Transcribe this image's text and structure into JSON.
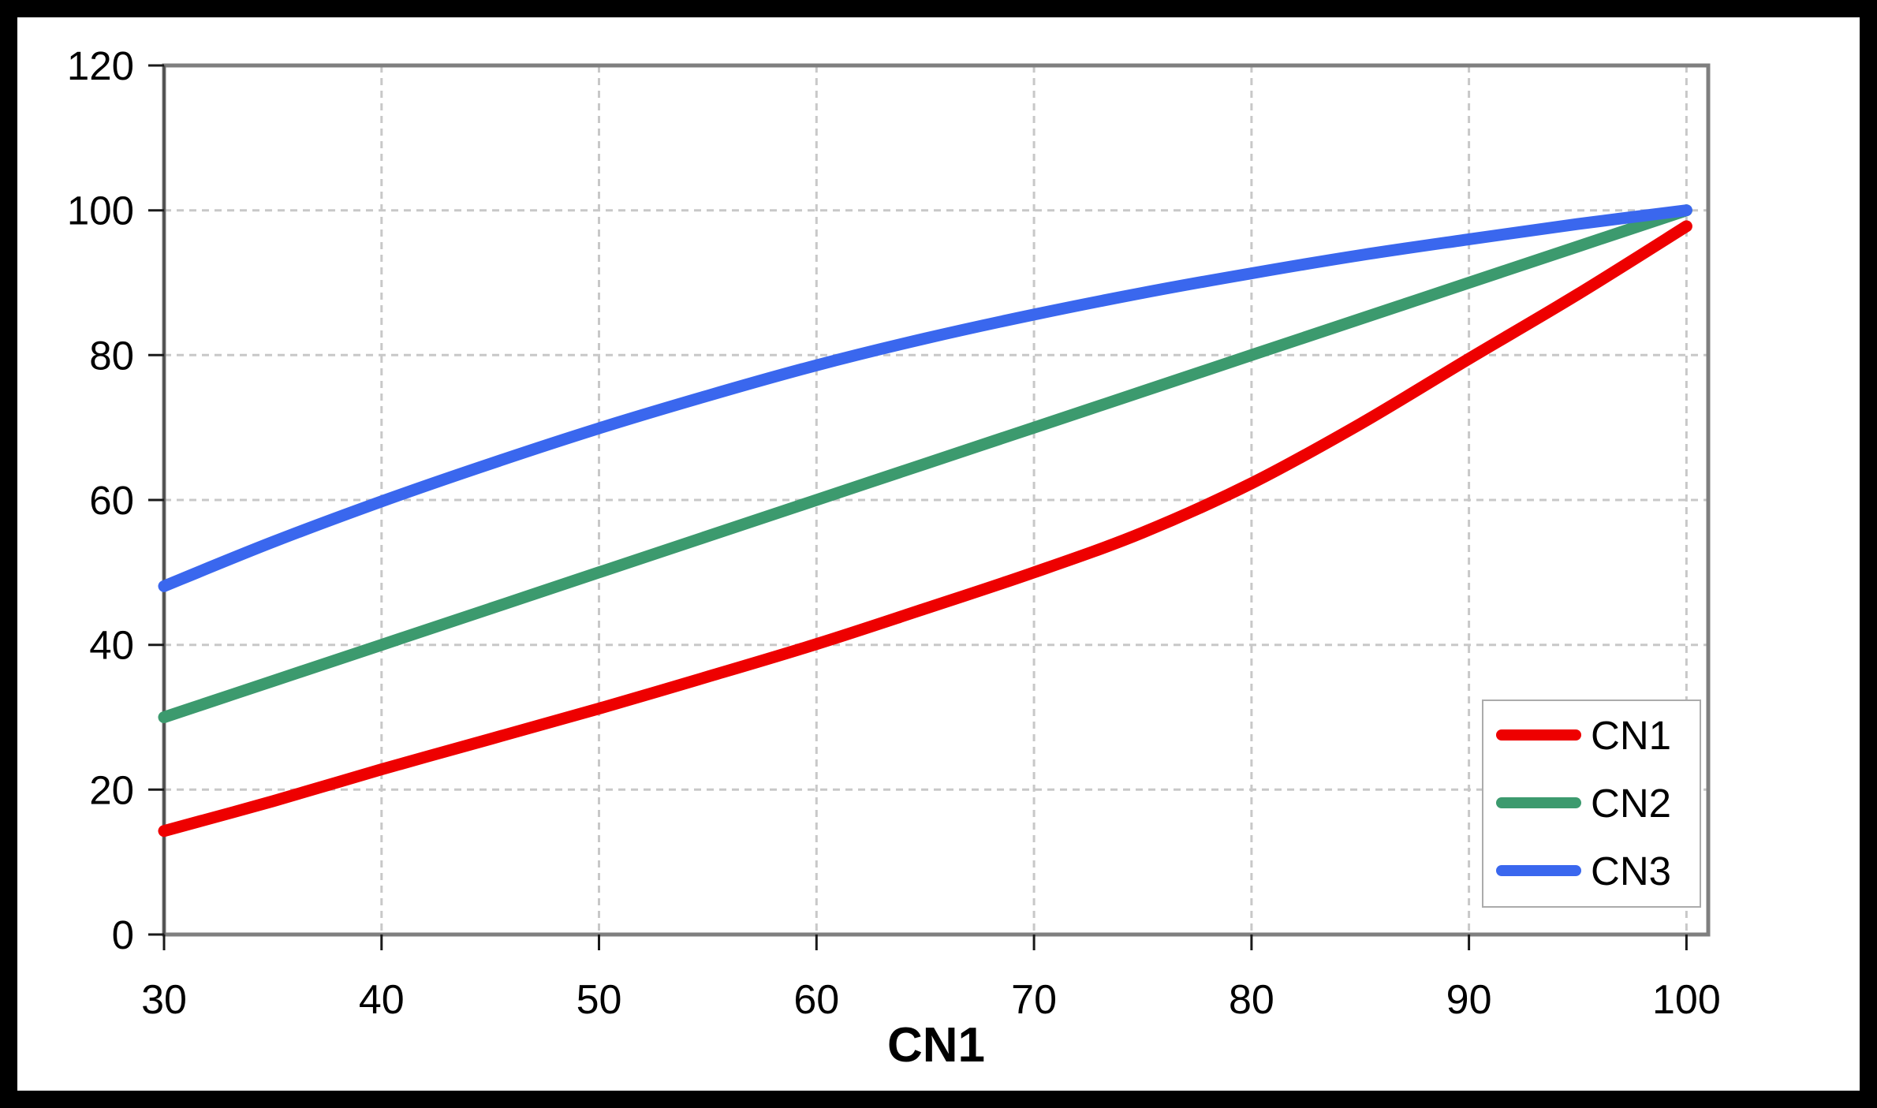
{
  "frame": {
    "border_color": "#000000",
    "background_color": "#ffffff"
  },
  "chart_data": {
    "type": "line",
    "title": "",
    "xlabel": "CN1",
    "ylabel": "",
    "xlim": [
      30,
      101
    ],
    "ylim": [
      0,
      120
    ],
    "x_ticks": [
      30,
      40,
      50,
      60,
      70,
      80,
      90,
      100
    ],
    "y_ticks": [
      0,
      20,
      40,
      60,
      80,
      100,
      120
    ],
    "grid": "dashed",
    "legend_position": "inside-bottom-right",
    "x": [
      30,
      35,
      40,
      45,
      50,
      55,
      60,
      65,
      70,
      75,
      80,
      85,
      90,
      95,
      100
    ],
    "series": [
      {
        "name": "CN1",
        "color": "#ee0000",
        "values": [
          14.3,
          18.4,
          22.8,
          27.0,
          31.2,
          35.6,
          40.1,
          45.0,
          50.0,
          55.5,
          62.3,
          70.5,
          79.5,
          88.4,
          97.8
        ]
      },
      {
        "name": "CN2",
        "color": "#3c9a6e",
        "values": [
          30,
          35,
          40,
          45,
          50,
          55,
          60,
          65,
          70,
          75,
          80,
          85,
          90,
          95,
          100
        ]
      },
      {
        "name": "CN3",
        "color": "#3a67ee",
        "values": [
          48.1,
          54.2,
          59.8,
          65.0,
          69.9,
          74.4,
          78.6,
          82.3,
          85.6,
          88.6,
          91.3,
          93.8,
          96.0,
          98.1,
          100.0
        ]
      }
    ],
    "style": {
      "line_width": 15,
      "gridline_color": "#c8c8c8",
      "plot_border_color": "#7f7f7f",
      "axis_line_color": "#4d4d4d",
      "tick_color": "#1a1a1a",
      "tick_label_color": "#000000",
      "tick_label_size": 51
    }
  }
}
